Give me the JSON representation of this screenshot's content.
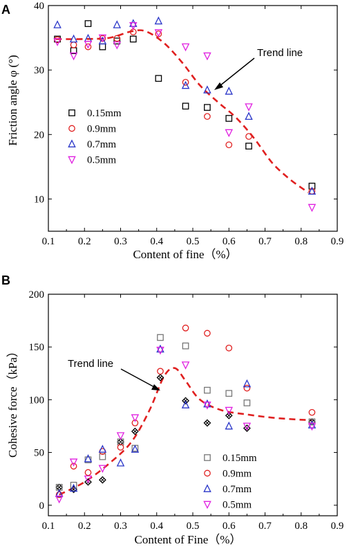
{
  "chart_data": [
    {
      "panel_label": "A",
      "type": "scatter",
      "xlabel": "Content of fine（%）",
      "ylabel": "Friction angle φ (°)",
      "xlim": [
        0.1,
        0.9
      ],
      "ylim": [
        5,
        40
      ],
      "xticks": [
        0.1,
        0.2,
        0.3,
        0.4,
        0.5,
        0.6,
        0.7,
        0.8,
        0.9
      ],
      "yticks": [
        10,
        20,
        30,
        40
      ],
      "annotation": "Trend line",
      "legend_placement": "center-left",
      "series": [
        {
          "name": "0.15mm",
          "marker": "square",
          "color": "#000000",
          "x": [
            0.125,
            0.17,
            0.21,
            0.25,
            0.29,
            0.335,
            0.405,
            0.48,
            0.54,
            0.6,
            0.655,
            0.83
          ],
          "y": [
            34.8,
            33.0,
            37.2,
            33.6,
            34.5,
            34.8,
            28.7,
            24.4,
            24.2,
            22.5,
            18.2,
            12.0
          ]
        },
        {
          "name": "0.9mm",
          "marker": "circle",
          "color": "#e02020",
          "x": [
            0.125,
            0.17,
            0.21,
            0.25,
            0.29,
            0.335,
            0.405,
            0.48,
            0.54,
            0.6,
            0.655,
            0.83
          ],
          "y": [
            34.7,
            33.9,
            33.6,
            34.9,
            34.9,
            35.9,
            35.6,
            28.1,
            22.8,
            18.4,
            19.7,
            11.2
          ]
        },
        {
          "name": "0.7mm",
          "marker": "triangle-up",
          "color": "#2a36c8",
          "x": [
            0.125,
            0.17,
            0.21,
            0.25,
            0.29,
            0.335,
            0.405,
            0.48,
            0.54,
            0.6,
            0.655,
            0.83
          ],
          "y": [
            37.0,
            34.8,
            34.9,
            34.5,
            37.0,
            37.2,
            37.6,
            27.6,
            26.9,
            26.7,
            22.8,
            11.2
          ]
        },
        {
          "name": "0.5mm",
          "marker": "triangle-down",
          "color": "#e020e0",
          "x": [
            0.125,
            0.17,
            0.21,
            0.25,
            0.29,
            0.335,
            0.405,
            0.48,
            0.54,
            0.6,
            0.655,
            0.83
          ],
          "y": [
            34.4,
            32.2,
            34.0,
            35.0,
            33.9,
            36.9,
            35.8,
            33.6,
            32.2,
            20.3,
            24.3,
            8.7
          ]
        }
      ],
      "trend": {
        "x": [
          0.12,
          0.2,
          0.27,
          0.33,
          0.37,
          0.42,
          0.47,
          0.52,
          0.57,
          0.62,
          0.67,
          0.72,
          0.77,
          0.82
        ],
        "y": [
          34.8,
          34.8,
          35.0,
          36.0,
          36.0,
          34.2,
          31.2,
          27.6,
          25.0,
          22.6,
          19.4,
          15.6,
          13.0,
          11.0
        ]
      }
    },
    {
      "panel_label": "B",
      "type": "scatter",
      "xlabel": "Content of Fine（%）",
      "ylabel": "Cohesive force（kPa）",
      "xlim": [
        0.1,
        0.9
      ],
      "ylim": [
        -10,
        200
      ],
      "xticks": [
        0.1,
        0.2,
        0.3,
        0.4,
        0.5,
        0.6,
        0.7,
        0.8,
        0.9
      ],
      "yticks": [
        0,
        50,
        100,
        150,
        200
      ],
      "annotation": "Trend line",
      "legend_placement": "bottom-right",
      "series": [
        {
          "name": "0.15mm",
          "marker": "square",
          "color": "#777777",
          "x": [
            0.13,
            0.17,
            0.21,
            0.25,
            0.3,
            0.34,
            0.41,
            0.48,
            0.54,
            0.6,
            0.65,
            0.83
          ],
          "y": [
            17,
            19,
            43,
            46,
            60,
            54,
            159,
            151,
            109,
            106,
            97,
            79
          ]
        },
        {
          "name": "0.9mm",
          "marker": "circle",
          "color": "#e02020",
          "x": [
            0.13,
            0.17,
            0.21,
            0.25,
            0.3,
            0.34,
            0.41,
            0.48,
            0.54,
            0.6,
            0.65,
            0.83
          ],
          "y": [
            10,
            37,
            31,
            51,
            55,
            78,
            127,
            168,
            163,
            149,
            111,
            88
          ]
        },
        {
          "name": "0.7mm",
          "marker": "triangle-up",
          "color": "#2a36c8",
          "x": [
            0.13,
            0.17,
            0.21,
            0.25,
            0.3,
            0.34,
            0.41,
            0.48,
            0.54,
            0.6,
            0.65,
            0.83
          ],
          "y": [
            11,
            16,
            44,
            53,
            40,
            53,
            148,
            95,
            96,
            75,
            115,
            76
          ]
        },
        {
          "name": "0.5mm",
          "marker": "triangle-down",
          "color": "#e020e0",
          "x": [
            0.13,
            0.17,
            0.21,
            0.25,
            0.3,
            0.34,
            0.41,
            0.48,
            0.54,
            0.6,
            0.65,
            0.83
          ],
          "y": [
            6,
            41,
            25,
            35,
            66,
            83,
            147,
            133,
            95,
            90,
            75,
            75
          ]
        }
      ],
      "trend_points": {
        "x": [
          0.13,
          0.17,
          0.21,
          0.25,
          0.3,
          0.34,
          0.41,
          0.48,
          0.54,
          0.6,
          0.65,
          0.83
        ],
        "y": [
          17,
          15,
          22,
          24,
          60,
          70,
          121,
          99,
          78,
          85,
          73,
          79
        ]
      },
      "trend": {
        "x": [
          0.13,
          0.2,
          0.27,
          0.33,
          0.38,
          0.42,
          0.45,
          0.48,
          0.52,
          0.58,
          0.65,
          0.72,
          0.8,
          0.83
        ],
        "y": [
          10,
          22,
          40,
          60,
          90,
          122,
          130,
          118,
          100,
          90,
          86,
          83,
          81,
          81
        ]
      }
    }
  ]
}
